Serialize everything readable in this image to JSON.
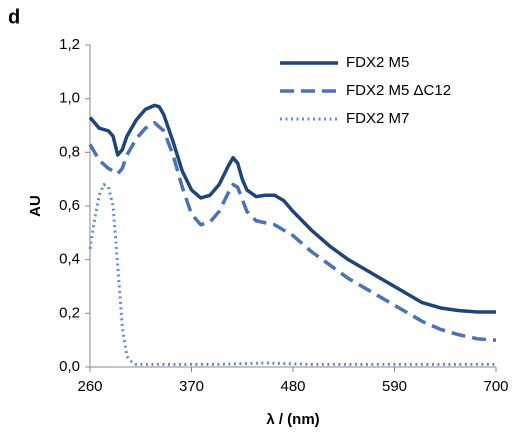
{
  "chart_data": {
    "type": "line",
    "panel_label": "d",
    "xlabel": "λ / (nm)",
    "ylabel": "AU",
    "xlim": [
      260,
      700
    ],
    "xticks": [
      260,
      370,
      480,
      590,
      700
    ],
    "ylim": [
      0,
      1.2
    ],
    "yticks": [
      {
        "value": 0,
        "label": "0,0"
      },
      {
        "value": 0.2,
        "label": "0,2"
      },
      {
        "value": 0.4,
        "label": "0,4"
      },
      {
        "value": 0.6,
        "label": "0,6"
      },
      {
        "value": 0.8,
        "label": "0,8"
      },
      {
        "value": 1.0,
        "label": "1,0"
      },
      {
        "value": 1.2,
        "label": "1,2"
      }
    ],
    "grid": false,
    "legend": "top-right",
    "series": [
      {
        "name": "FDX2 M5",
        "color": "#1f4578",
        "style": "solid",
        "x": [
          260,
          270,
          280,
          285,
          290,
          295,
          300,
          310,
          320,
          330,
          335,
          340,
          350,
          360,
          370,
          380,
          390,
          400,
          410,
          415,
          420,
          425,
          430,
          440,
          450,
          460,
          470,
          480,
          500,
          520,
          540,
          560,
          580,
          600,
          620,
          640,
          660,
          680,
          700
        ],
        "values": [
          0.93,
          0.89,
          0.88,
          0.86,
          0.79,
          0.81,
          0.86,
          0.92,
          0.96,
          0.975,
          0.97,
          0.94,
          0.84,
          0.73,
          0.66,
          0.63,
          0.64,
          0.68,
          0.75,
          0.78,
          0.76,
          0.7,
          0.66,
          0.635,
          0.64,
          0.64,
          0.62,
          0.58,
          0.51,
          0.45,
          0.4,
          0.36,
          0.32,
          0.28,
          0.24,
          0.22,
          0.21,
          0.205,
          0.205
        ]
      },
      {
        "name": "FDX2  M5 ΔC12",
        "color": "#4a72b5",
        "style": "dashed",
        "x": [
          260,
          270,
          280,
          290,
          295,
          300,
          310,
          320,
          330,
          340,
          350,
          360,
          370,
          380,
          390,
          400,
          410,
          415,
          420,
          430,
          440,
          460,
          480,
          500,
          520,
          540,
          560,
          580,
          600,
          620,
          640,
          660,
          680,
          700
        ],
        "values": [
          0.83,
          0.77,
          0.74,
          0.72,
          0.74,
          0.79,
          0.85,
          0.89,
          0.91,
          0.88,
          0.79,
          0.67,
          0.57,
          0.53,
          0.54,
          0.58,
          0.65,
          0.68,
          0.67,
          0.58,
          0.545,
          0.53,
          0.49,
          0.43,
          0.38,
          0.33,
          0.29,
          0.25,
          0.21,
          0.17,
          0.14,
          0.12,
          0.105,
          0.1
        ]
      },
      {
        "name": "FDX2 M7",
        "color": "#5b8fd6",
        "style": "dotted",
        "x": [
          260,
          265,
          270,
          275,
          280,
          285,
          290,
          295,
          300,
          305,
          310,
          350,
          400,
          450,
          500,
          550,
          600,
          650,
          700
        ],
        "values": [
          0.44,
          0.55,
          0.64,
          0.68,
          0.67,
          0.6,
          0.38,
          0.15,
          0.04,
          0.02,
          0.01,
          0.01,
          0.01,
          0.015,
          0.01,
          0.01,
          0.01,
          0.01,
          0.01
        ]
      }
    ]
  }
}
